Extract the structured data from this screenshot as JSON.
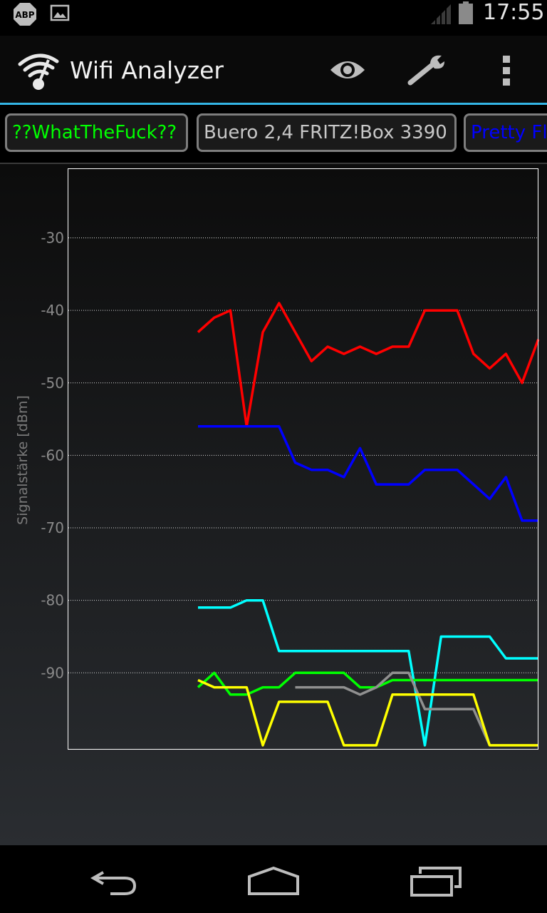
{
  "status_bar": {
    "abp_label": "ABP",
    "time": "17:55",
    "icons": [
      "abp-icon",
      "image-icon",
      "signal-icon",
      "battery-icon"
    ]
  },
  "action_bar": {
    "title": "Wifi Analyzer",
    "icons": [
      "wifi-app-icon",
      "eye-icon",
      "wrench-icon",
      "overflow-menu-icon"
    ],
    "accent_color": "#33b5e5"
  },
  "network_chips": [
    {
      "label": "??WhatTheFuck??",
      "color": "#00ff00"
    },
    {
      "label": "Buero 2,4 FRITZ!Box 3390",
      "color": "#c8c8c8"
    },
    {
      "label": "Pretty Fl",
      "color": "#0000ff"
    }
  ],
  "chart_data": {
    "type": "line",
    "ylabel": "Signalstärke [dBm]",
    "xlabel": "",
    "ylim": [
      -100.5,
      -20.5
    ],
    "xlim": [
      0,
      29
    ],
    "yticks": [
      -30,
      -40,
      -50,
      -60,
      -70,
      -80,
      -90
    ],
    "ytick_labels": [
      "-30",
      "-40",
      "-50",
      "-60",
      "-70",
      "-80",
      "-90"
    ],
    "grid": true,
    "series": [
      {
        "color": "#ff0000",
        "x": [
          8,
          9,
          10,
          11,
          12,
          13,
          14,
          15,
          16,
          17,
          18,
          19,
          20,
          21,
          22,
          23,
          24,
          25,
          26,
          27,
          28,
          29
        ],
        "values": [
          -43,
          -41,
          -40,
          -56,
          -43,
          -39,
          -43,
          -47,
          -45,
          -46,
          -45,
          -46,
          -45,
          -45,
          -40,
          -40,
          -40,
          -46,
          -48,
          -46,
          -50,
          -44
        ]
      },
      {
        "color": "#0000ff",
        "x": [
          8,
          9,
          10,
          11,
          12,
          13,
          14,
          15,
          16,
          17,
          18,
          19,
          20,
          21,
          22,
          23,
          24,
          25,
          26,
          27,
          28,
          29
        ],
        "values": [
          -56,
          -56,
          -56,
          -56,
          -56,
          -56,
          -61,
          -62,
          -62,
          -63,
          -59,
          -64,
          -64,
          -64,
          -62,
          -62,
          -62,
          -64,
          -66,
          -63,
          -69,
          -69
        ]
      },
      {
        "color": "#00ffff",
        "x": [
          8,
          9,
          10,
          11,
          12,
          13,
          14,
          15,
          16,
          17,
          18,
          19,
          20,
          21,
          22,
          23,
          24,
          25,
          26,
          27,
          28,
          29
        ],
        "values": [
          -81,
          -81,
          -81,
          -80,
          -80,
          -87,
          -87,
          -87,
          -87,
          -87,
          -87,
          -87,
          -87,
          -87,
          -100,
          -85,
          -85,
          -85,
          -85,
          -88,
          -88,
          -88
        ]
      },
      {
        "color": "#00ff00",
        "x": [
          8,
          9,
          10,
          11,
          12,
          13,
          14,
          15,
          16,
          17,
          18,
          19,
          20,
          21,
          22,
          23,
          24,
          25,
          26,
          27,
          28,
          29
        ],
        "values": [
          -92,
          -90,
          -93,
          -93,
          -92,
          -92,
          -90,
          -90,
          -90,
          -90,
          -92,
          -92,
          -91,
          -91,
          -91,
          -91,
          -91,
          -91,
          -91,
          -91,
          -91,
          -91
        ]
      },
      {
        "color": "#909090",
        "x": [
          14,
          15,
          16,
          17,
          18,
          19,
          20,
          21,
          22,
          23,
          24,
          25,
          26
        ],
        "values": [
          -92,
          -92,
          -92,
          -92,
          -93,
          -92,
          -90,
          -90,
          -95,
          -95,
          -95,
          -95,
          -100
        ]
      },
      {
        "color": "#ffff00",
        "x": [
          8,
          9,
          10,
          11,
          12,
          13,
          14,
          15,
          16,
          17,
          18,
          19,
          20,
          21,
          22,
          23,
          24,
          25,
          26,
          27,
          28,
          29
        ],
        "values": [
          -91,
          -92,
          -92,
          -92,
          -100,
          -94,
          -94,
          -94,
          -94,
          -100,
          -100,
          -100,
          -93,
          -93,
          -93,
          -93,
          -93,
          -93,
          -100,
          -100,
          -100,
          -100
        ]
      }
    ]
  },
  "nav_bar": {
    "icons": [
      "back-icon",
      "home-icon",
      "recent-apps-icon"
    ]
  }
}
